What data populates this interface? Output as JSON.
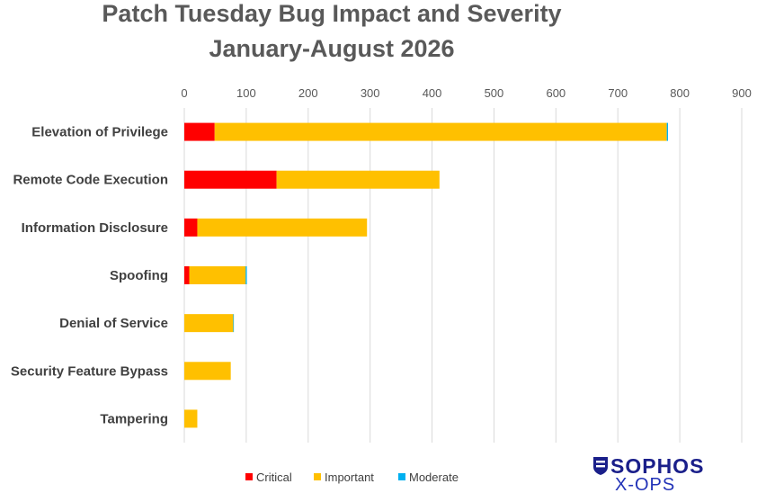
{
  "chart_data": {
    "type": "bar",
    "orientation": "horizontal",
    "stacked": true,
    "title": [
      "Patch Tuesday Bug Impact and Severity",
      "January-August 2026"
    ],
    "categories": [
      "Elevation of Privilege",
      "Remote Code Execution",
      "Information Disclosure",
      "Spoofing",
      "Denial of Service",
      "Security Feature Bypass",
      "Tampering"
    ],
    "series": [
      {
        "name": "Critical",
        "color": "#ff0000",
        "values": [
          49,
          149,
          21,
          8,
          0,
          0,
          0
        ]
      },
      {
        "name": "Important",
        "color": "#ffc000",
        "values": [
          730,
          263,
          274,
          91,
          79,
          75,
          21
        ]
      },
      {
        "name": "Moderate",
        "color": "#00b0f0",
        "values": [
          2,
          0,
          0,
          2,
          1,
          0,
          0
        ]
      }
    ],
    "xlim": [
      0,
      900
    ],
    "xticks": [
      "0",
      "100",
      "200",
      "300",
      "400",
      "500",
      "600",
      "700",
      "800",
      "900"
    ],
    "x_axis_position": "top",
    "grid": true,
    "legend_position": "bottom"
  },
  "logo": {
    "brand": "SOPHOS",
    "sub": "X-OPS",
    "color": "#1a1f8a"
  }
}
